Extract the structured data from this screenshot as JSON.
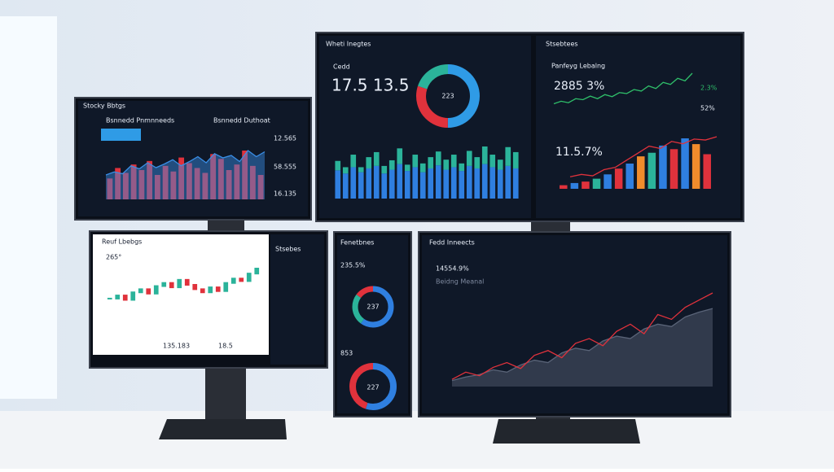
{
  "monitors": [
    {
      "title": "Stocky Bbtgs",
      "tabs": [
        "Bsnnedd Pnmnneeds",
        "Bsnnedd Duthoat"
      ],
      "values": [
        "12.565",
        "58.555",
        "16.135"
      ]
    },
    {
      "title": "Wheti Inegtes",
      "label": "Cedd",
      "big": "17.5 13.5",
      "donut_label": "223"
    },
    {
      "title": "Stsebtees",
      "label": "Panfeyg Lebalng",
      "big": "2885 3%",
      "side": [
        "2.3%",
        "52%"
      ],
      "second": "11.5.7%"
    },
    {
      "title": "Reuf Lbebgs",
      "big": "265°",
      "values": [
        "135.183",
        "18.5"
      ],
      "sidebar": "Stsebes"
    },
    {
      "title": "Fenetbnes",
      "big": "235.5%",
      "donut_label": "237",
      "second": "853",
      "donut2_label": "227"
    },
    {
      "title": "Fedd Inneects",
      "big": "14554.9%",
      "sub": "Beidng Meanal"
    }
  ],
  "charts": [
    {
      "type": "bar",
      "series": [
        {
          "color": "#e0323c",
          "values": [
            30,
            45,
            38,
            50,
            42,
            55,
            35,
            48,
            40,
            60,
            52,
            45,
            38,
            65,
            58,
            42,
            50,
            70,
            48,
            35
          ]
        }
      ]
    },
    {
      "type": "area-line",
      "series": [
        {
          "color": "#3a8ee6",
          "values": [
            40,
            45,
            42,
            55,
            50,
            60,
            52,
            58,
            65,
            55,
            62,
            70,
            60,
            75,
            68,
            72,
            62,
            80,
            70,
            78
          ]
        }
      ]
    },
    {
      "type": "stacked-bar",
      "series": [
        {
          "color": "#2f7fe0",
          "values": [
            45,
            40,
            50,
            42,
            48,
            52,
            40,
            46,
            55,
            44,
            50,
            42,
            48,
            53,
            46,
            50,
            44,
            52,
            48,
            55,
            50,
            46,
            52,
            48
          ]
        },
        {
          "color": "#2bb39a",
          "values": [
            15,
            10,
            20,
            8,
            18,
            22,
            12,
            15,
            25,
            10,
            20,
            14,
            18,
            22,
            16,
            20,
            12,
            24,
            18,
            28,
            20,
            16,
            30,
            26
          ]
        }
      ]
    },
    {
      "type": "line",
      "series": [
        {
          "color": "#2fbf6a",
          "values": [
            20,
            25,
            22,
            30,
            28,
            35,
            30,
            38,
            34,
            42,
            40,
            48,
            45,
            55,
            50,
            62,
            58,
            70,
            65,
            80
          ]
        }
      ]
    },
    {
      "type": "bar",
      "series": [
        {
          "colors": [
            "#e0323c",
            "#2f7fe0",
            "#e0323c",
            "#2bb39a",
            "#2f7fe0",
            "#e0323c",
            "#2f7fe0",
            "#f08c2c",
            "#2bb39a",
            "#2f7fe0",
            "#e0323c",
            "#2f7fe0",
            "#f08c2c",
            "#e0323c"
          ],
          "values": [
            5,
            8,
            10,
            14,
            20,
            28,
            35,
            45,
            50,
            60,
            55,
            70,
            62,
            48
          ]
        }
      ]
    },
    {
      "type": "line",
      "series": [
        {
          "color": "#e0323c",
          "values": [
            10,
            15,
            12,
            25,
            30,
            45,
            60,
            75,
            70,
            85,
            80,
            90,
            88,
            95
          ]
        }
      ]
    },
    {
      "type": "candles",
      "series": [
        {
          "values": [
            30,
            35,
            28,
            40,
            45,
            38,
            50,
            55,
            48,
            60,
            52,
            45,
            40,
            48,
            42,
            55,
            62,
            58,
            70,
            78
          ]
        }
      ]
    },
    {
      "type": "area-line",
      "series": [
        {
          "color": "#5a6478",
          "values": [
            5,
            8,
            10,
            14,
            12,
            18,
            22,
            20,
            28,
            32,
            30,
            38,
            42,
            40,
            48,
            52,
            50,
            58,
            62,
            65
          ]
        },
        {
          "color": "#e0323c",
          "values": [
            6,
            12,
            9,
            16,
            20,
            15,
            26,
            30,
            24,
            36,
            40,
            34,
            46,
            52,
            44,
            60,
            56,
            66,
            72,
            78
          ]
        }
      ]
    },
    {
      "type": "donut",
      "series": [
        {
          "colors": [
            "#2f9be6",
            "#e0323c",
            "#2bb39a"
          ],
          "values": [
            50,
            30,
            20
          ]
        }
      ]
    },
    {
      "type": "donut",
      "series": [
        {
          "colors": [
            "#2f7fe0",
            "#2bb39a",
            "#e0323c"
          ],
          "values": [
            60,
            25,
            15
          ]
        }
      ]
    },
    {
      "type": "donut",
      "series": [
        {
          "colors": [
            "#2f7fe0",
            "#e0323c"
          ],
          "values": [
            55,
            45
          ]
        }
      ]
    }
  ]
}
